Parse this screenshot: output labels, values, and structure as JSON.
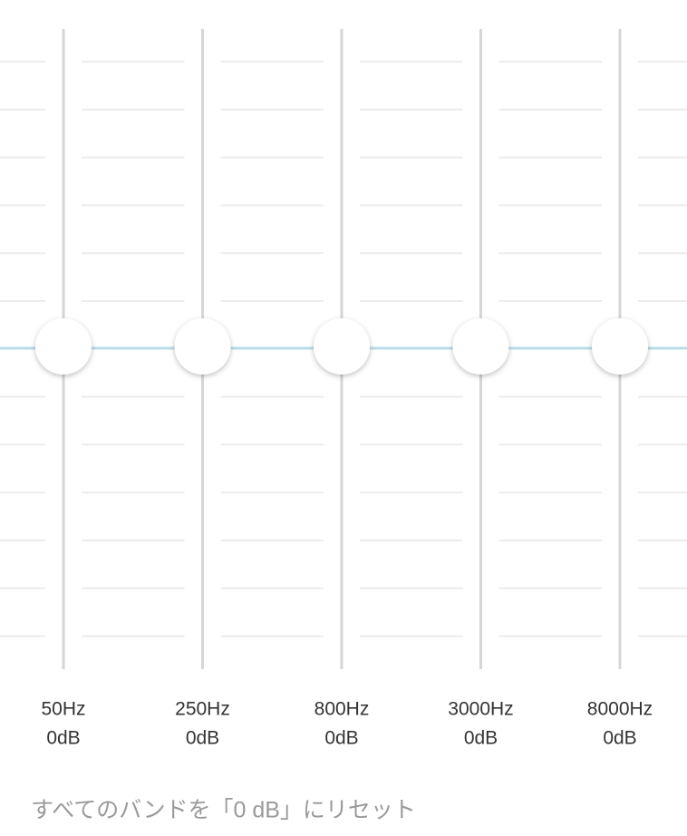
{
  "bands": [
    {
      "frequency": "50Hz",
      "gain": "0dB"
    },
    {
      "frequency": "250Hz",
      "gain": "0dB"
    },
    {
      "frequency": "800Hz",
      "gain": "0dB"
    },
    {
      "frequency": "3000Hz",
      "gain": "0dB"
    },
    {
      "frequency": "8000Hz",
      "gain": "0dB"
    }
  ],
  "reset_button": "すべてのバンドを「0 dB」にリセット"
}
